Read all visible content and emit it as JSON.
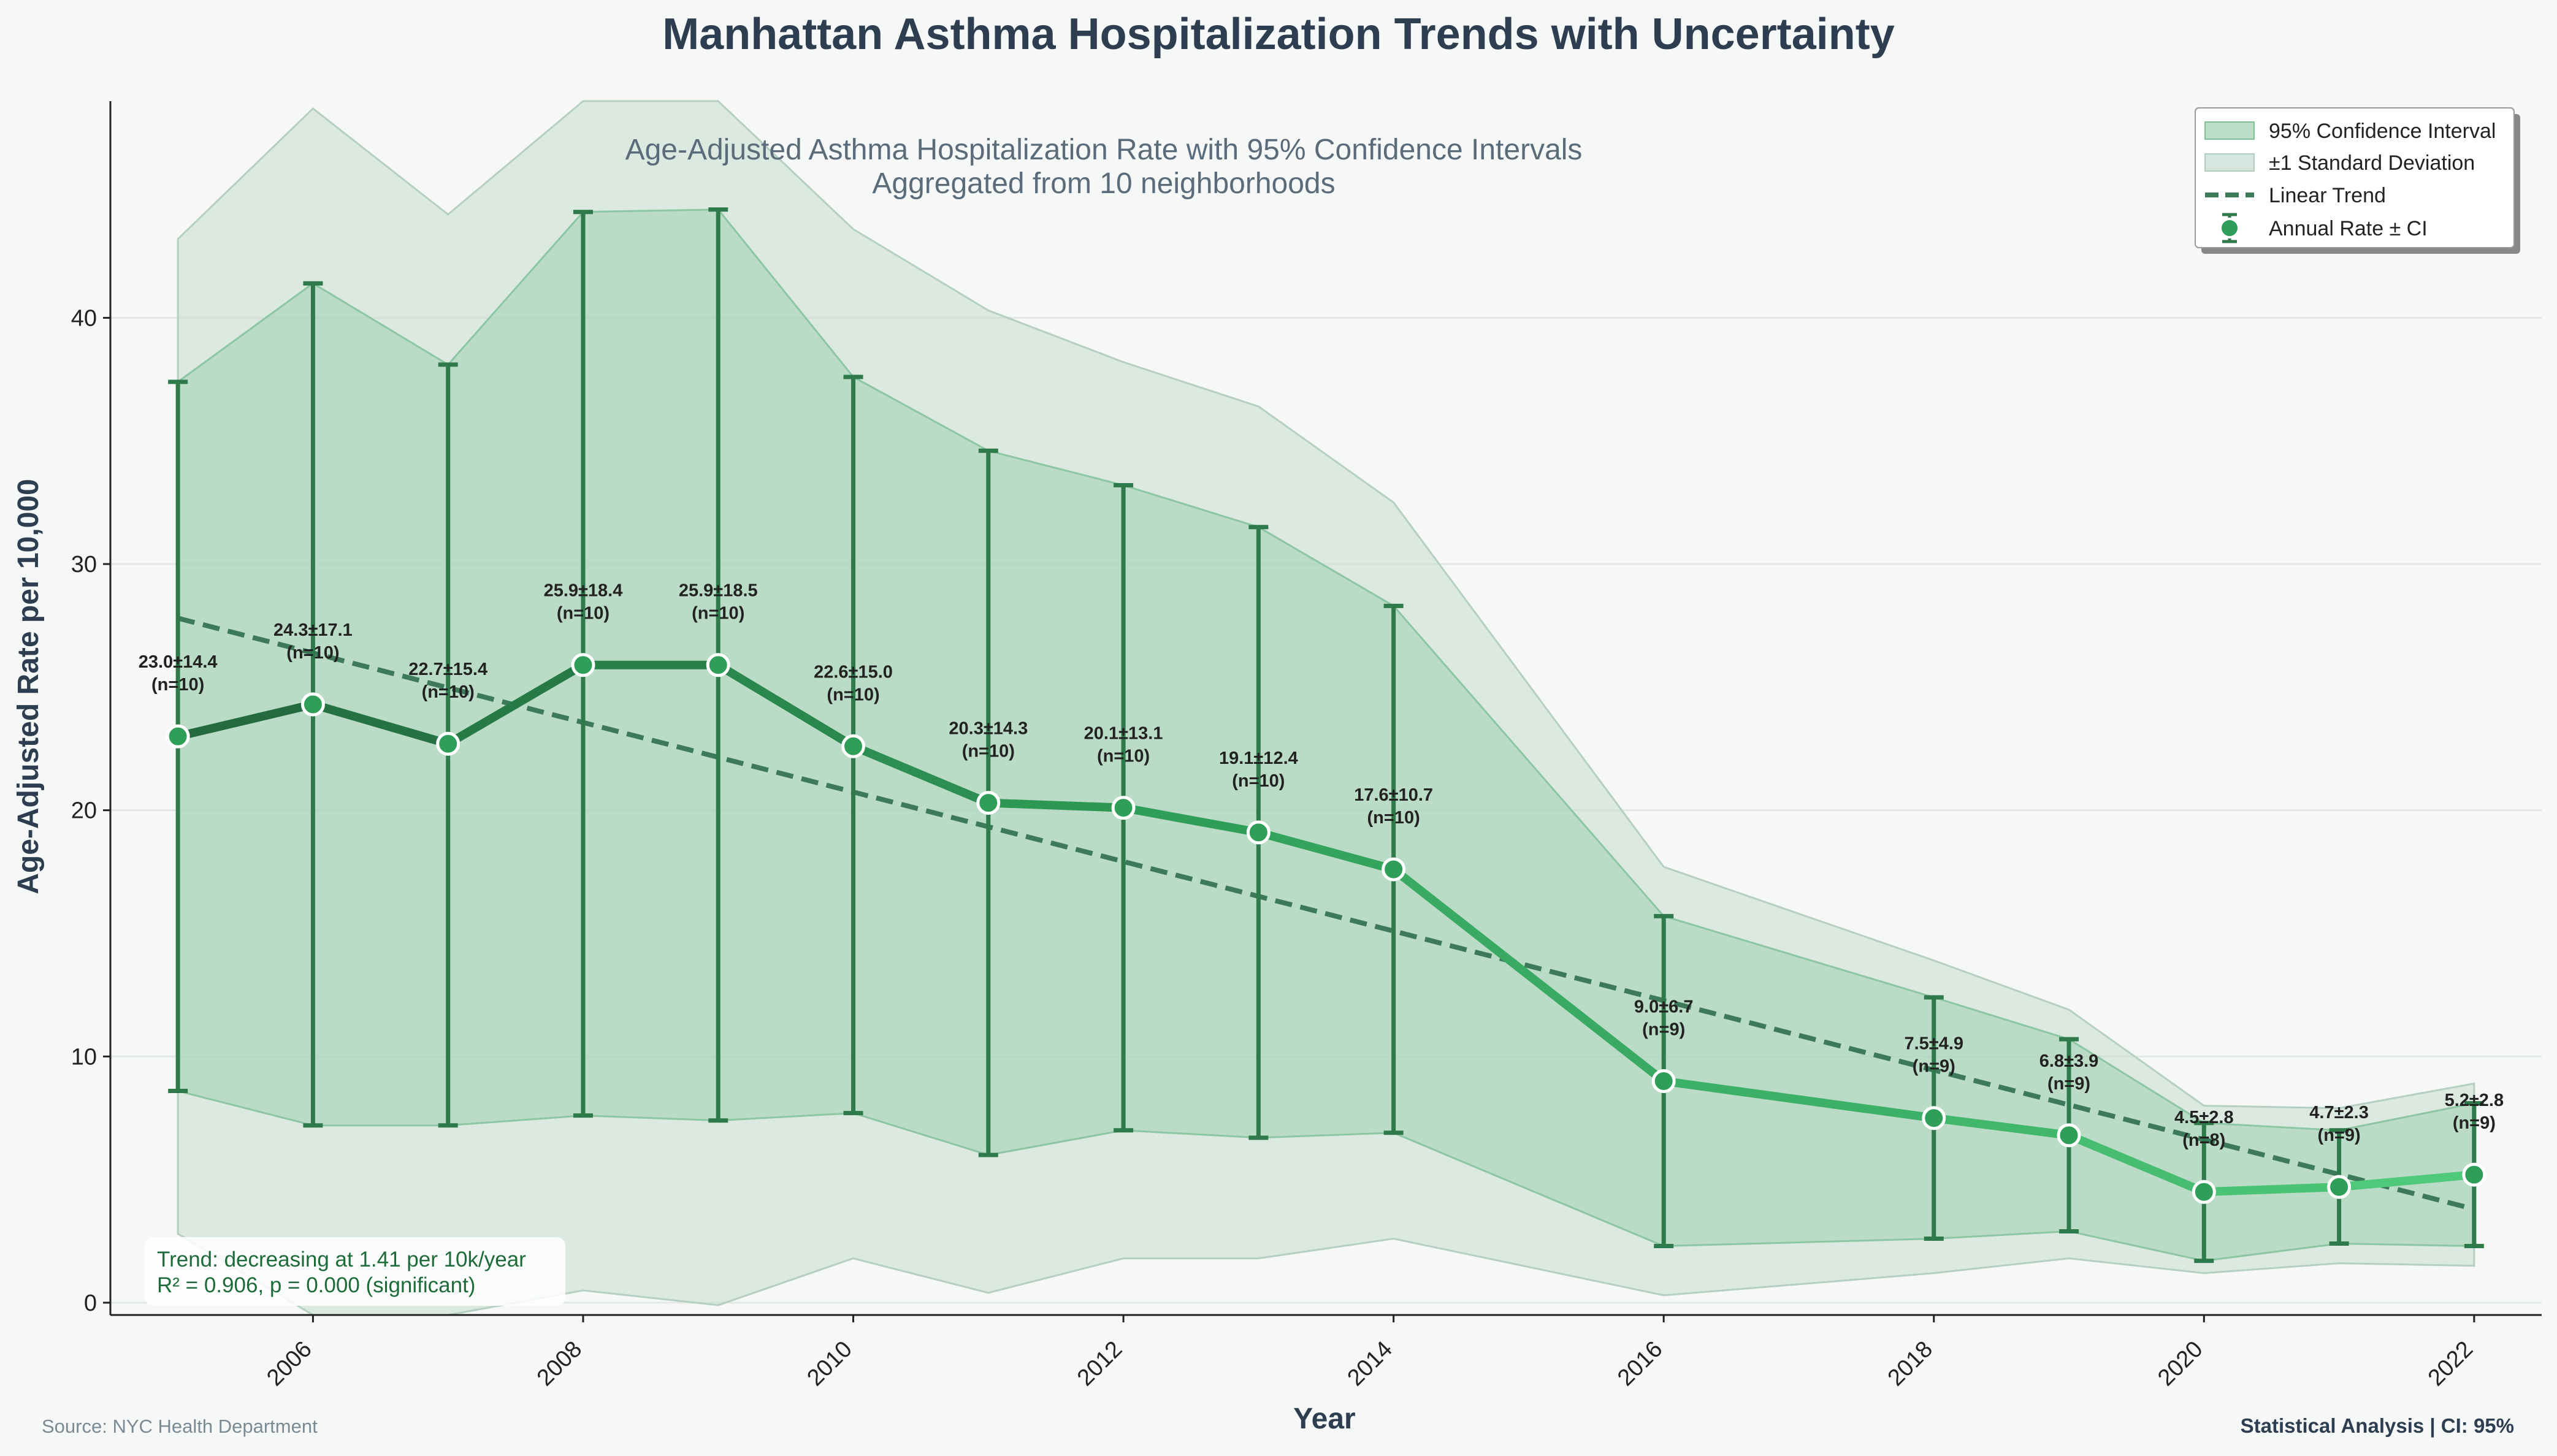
{
  "chart_data": {
    "type": "line",
    "title": "Manhattan Asthma Hospitalization Trends with Uncertainty",
    "subtitle_lines": [
      "Age-Adjusted Asthma Hospitalization Rate with 95% Confidence Intervals",
      "Aggregated from 10 neighborhoods"
    ],
    "xlabel": "Year",
    "ylabel": "Age-Adjusted Rate per 10,000",
    "xlim": [
      2004.5,
      2022.5
    ],
    "ylim": [
      -0.5,
      48.8
    ],
    "xticks": [
      2006,
      2008,
      2010,
      2012,
      2014,
      2016,
      2018,
      2020,
      2022
    ],
    "yticks": [
      0,
      10,
      20,
      30,
      40
    ],
    "grid": "horizontal",
    "legend_position": "top-right",
    "legend": [
      {
        "label": "95% Confidence Interval",
        "kind": "ci-patch"
      },
      {
        "label": "±1 Standard Deviation",
        "kind": "sd-patch"
      },
      {
        "label": "Linear Trend",
        "kind": "dashed-line"
      },
      {
        "label": "Annual Rate ± CI",
        "kind": "errorbar-marker"
      }
    ],
    "series": [
      {
        "name": "Annual Rate ± CI",
        "x": [
          2005,
          2006,
          2007,
          2008,
          2009,
          2010,
          2011,
          2012,
          2013,
          2014,
          2016,
          2018,
          2019,
          2020,
          2021,
          2022
        ],
        "y": [
          23.0,
          24.3,
          22.7,
          25.9,
          25.9,
          22.6,
          20.3,
          20.1,
          19.1,
          17.6,
          9.0,
          7.5,
          6.8,
          4.5,
          4.7,
          5.2
        ],
        "sd": [
          14.4,
          17.1,
          15.4,
          18.4,
          18.5,
          15.0,
          14.3,
          13.1,
          12.4,
          10.7,
          6.7,
          4.9,
          3.9,
          2.8,
          2.3,
          2.8
        ],
        "n": [
          10,
          10,
          10,
          10,
          10,
          10,
          10,
          10,
          10,
          10,
          9,
          9,
          9,
          8,
          9,
          9
        ],
        "ci_low": [
          8.6,
          7.2,
          7.2,
          7.6,
          7.4,
          7.7,
          6.0,
          7.0,
          6.7,
          6.9,
          2.3,
          2.6,
          2.9,
          1.7,
          2.4,
          2.3
        ],
        "ci_high": [
          37.4,
          41.4,
          38.1,
          44.3,
          44.4,
          37.6,
          34.6,
          33.2,
          31.5,
          28.3,
          15.7,
          12.4,
          10.7,
          7.3,
          7.0,
          8.1
        ],
        "sd_low": [
          2.8,
          -10.0,
          -10.0,
          0.5,
          -0.1,
          1.8,
          0.4,
          1.8,
          1.8,
          2.6,
          0.3,
          1.2,
          1.8,
          1.2,
          1.6,
          1.5
        ],
        "sd_high": [
          43.2,
          48.5,
          44.2,
          50.0,
          50.0,
          43.6,
          40.3,
          38.2,
          36.4,
          32.5,
          17.7,
          13.9,
          11.9,
          8.0,
          7.9,
          8.9
        ]
      }
    ],
    "labels": [
      "23.0±14.4",
      "24.3±17.1",
      "22.7±15.4",
      "25.9±18.4",
      "25.9±18.5",
      "22.6±15.0",
      "20.3±14.3",
      "20.1±13.1",
      "19.1±12.4",
      "17.6±10.7",
      "9.0±6.7",
      "7.5±4.9",
      "6.8±3.9",
      "4.5±2.8",
      "4.7±2.3",
      "5.2±2.8"
    ],
    "n_labels": [
      "(n=10)",
      "(n=10)",
      "(n=10)",
      "(n=10)",
      "(n=10)",
      "(n=10)",
      "(n=10)",
      "(n=10)",
      "(n=10)",
      "(n=10)",
      "(n=9)",
      "(n=9)",
      "(n=9)",
      "(n=8)",
      "(n=9)",
      "(n=9)"
    ],
    "trend": {
      "name": "Linear Trend",
      "x": [
        2005,
        2022
      ],
      "y": [
        27.8,
        3.8
      ]
    },
    "annotation": [
      "Trend: decreasing at 1.41 per 10k/year",
      "R² = 0.906, p = 0.000 (significant)"
    ],
    "footer_left": "Source: NYC Health Department",
    "footer_right": "Statistical Analysis | CI: 95%",
    "colors": {
      "ci_fill": "#9fd0b0",
      "sd_fill": "#c4dcd0",
      "trend": "#3d7a5a",
      "errorbar": "#2e7a4a",
      "line_dark": "#236b3e",
      "line_mid": "#2f9e58",
      "line_light": "#4fc97a",
      "title": "#2c3e50",
      "subtitle": "#5a6b7a"
    }
  }
}
